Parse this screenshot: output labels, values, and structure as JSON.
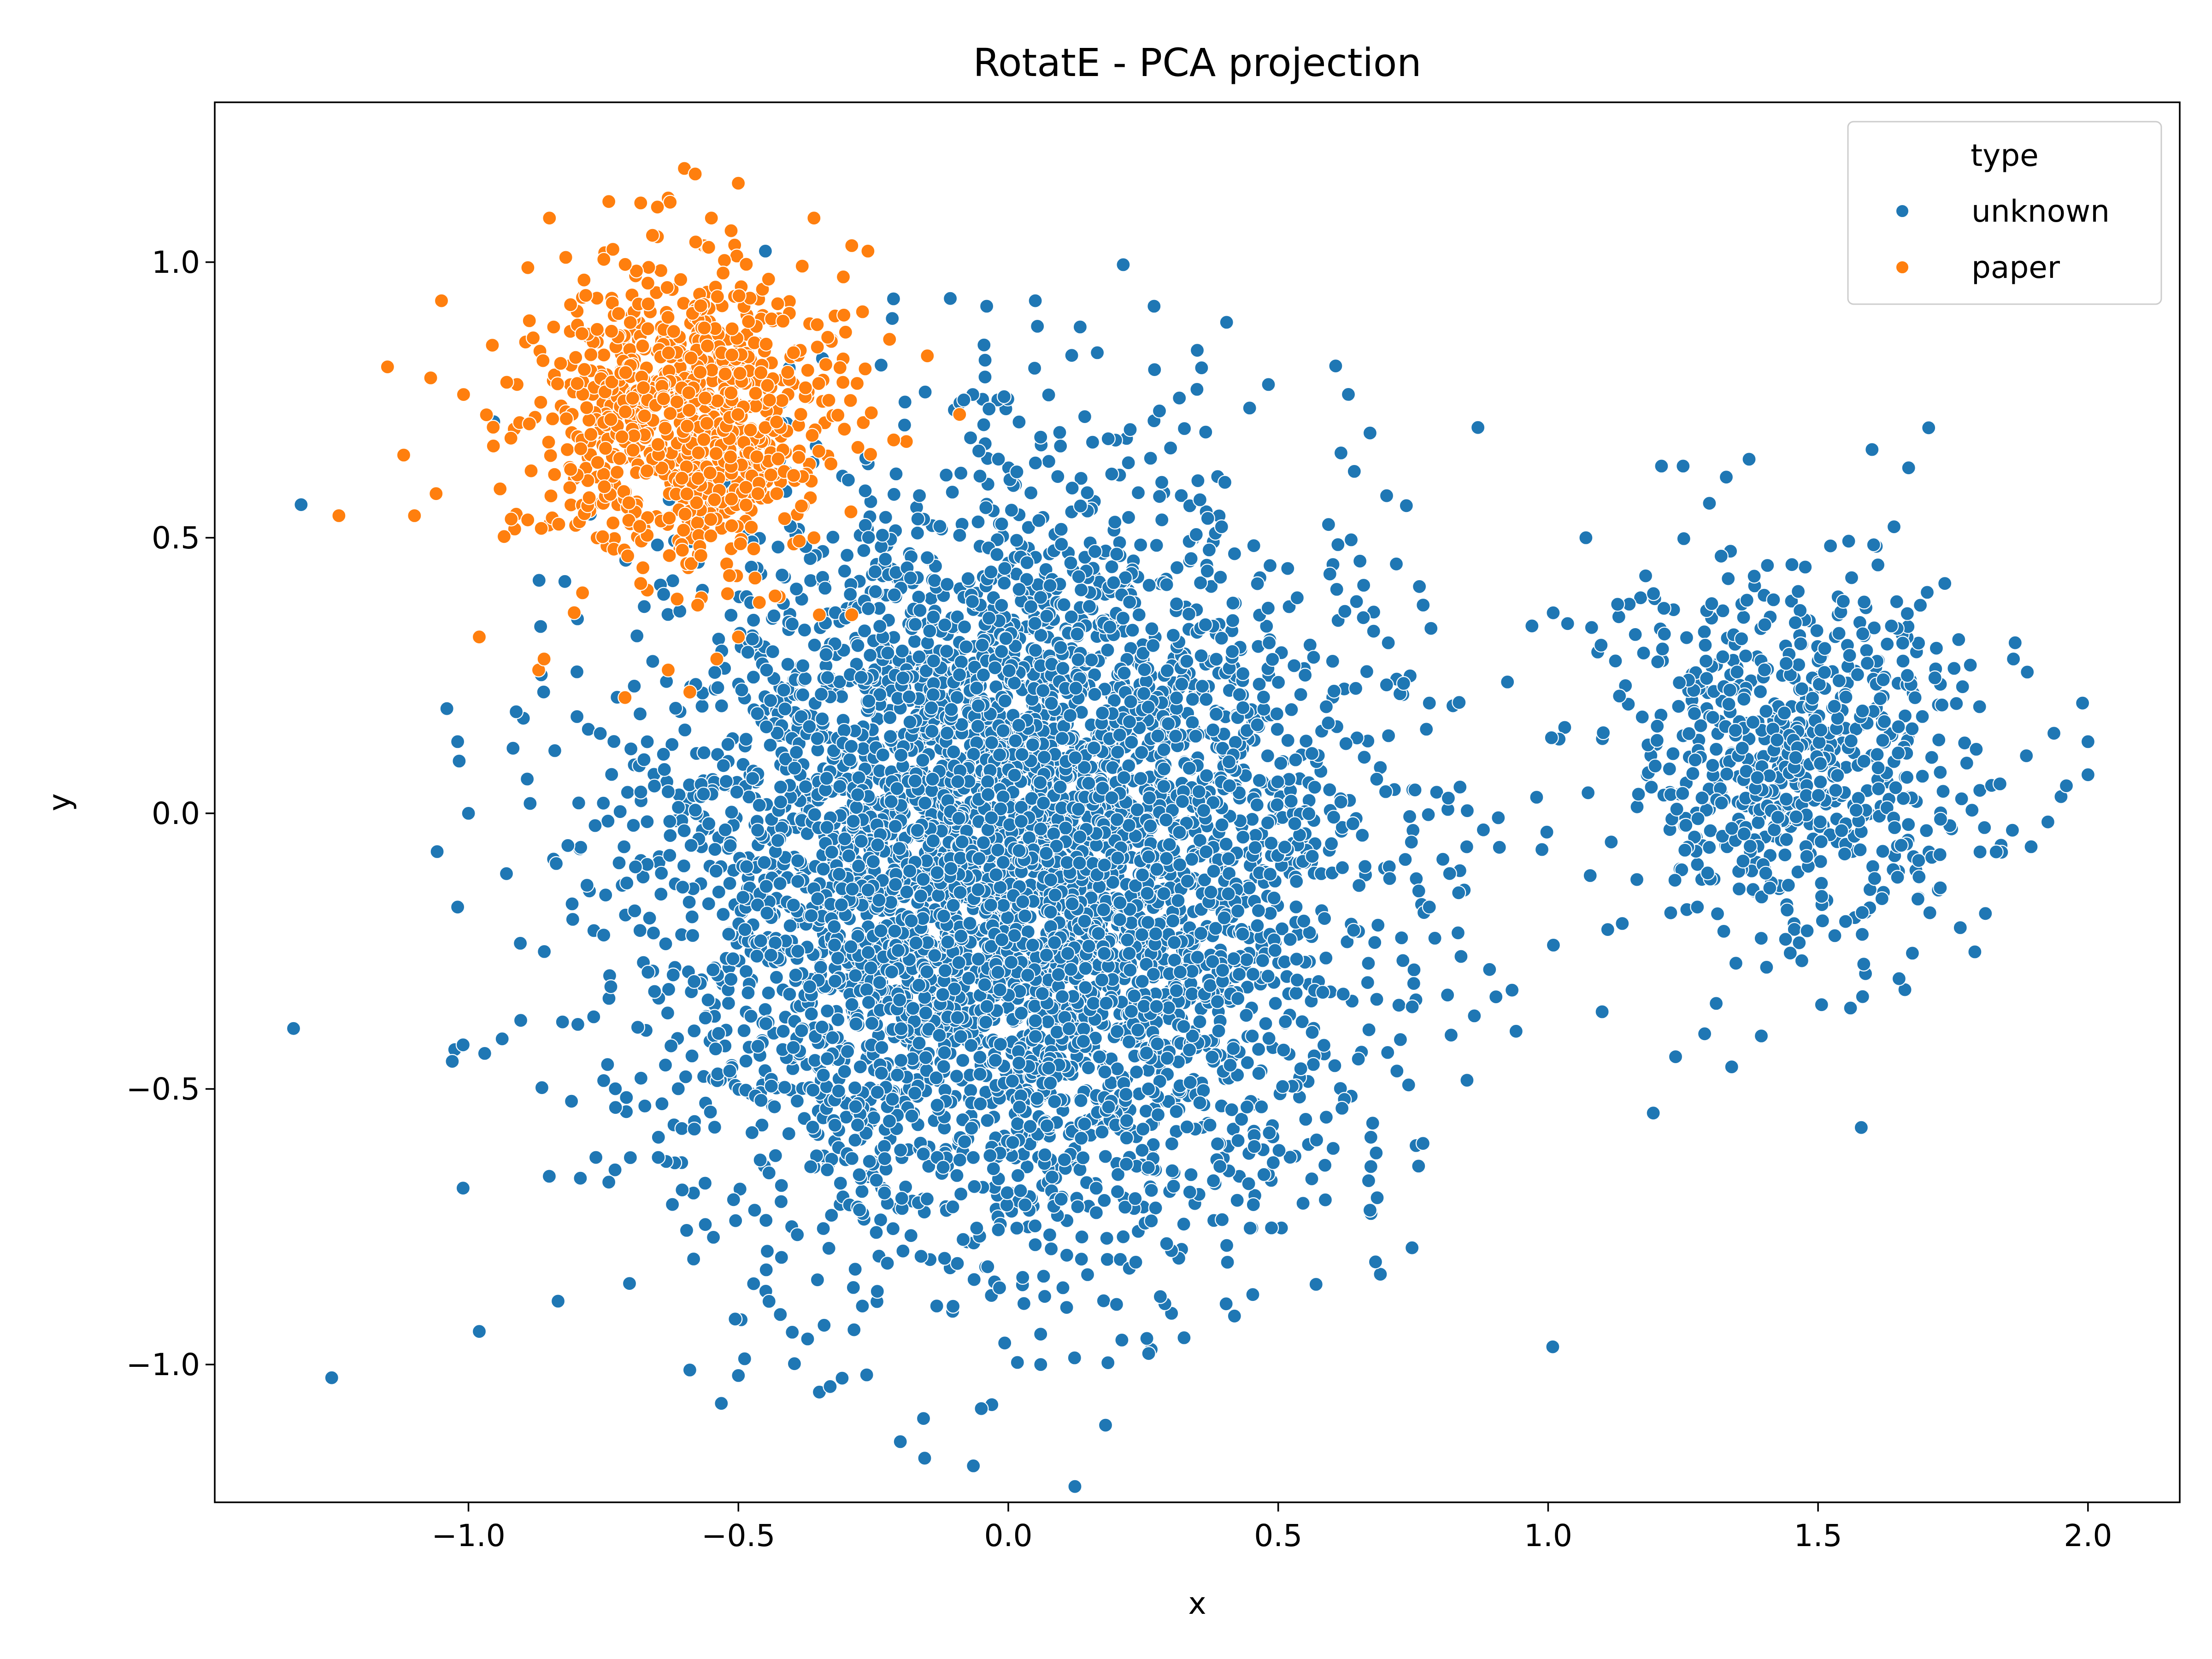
{
  "chart_data": {
    "type": "scatter",
    "title": "RotatE - PCA projection",
    "xlabel": "x",
    "ylabel": "y",
    "xlim": [
      -1.47,
      2.17
    ],
    "ylim": [
      -1.25,
      1.29
    ],
    "xticks": [
      -1.0,
      -0.5,
      0.0,
      0.5,
      1.0,
      1.5,
      2.0
    ],
    "xtick_labels": [
      "−1.0",
      "−0.5",
      "0.0",
      "0.5",
      "1.0",
      "1.5",
      "2.0"
    ],
    "yticks": [
      -1.0,
      -0.5,
      0.0,
      0.5,
      1.0
    ],
    "ytick_labels": [
      "−1.0",
      "−0.5",
      "0.0",
      "0.5",
      "1.0"
    ],
    "grid": false,
    "legend": {
      "title": "type",
      "placement": "upper right",
      "entries": [
        {
          "label": "unknown",
          "color": "#1f77b4"
        },
        {
          "label": "paper",
          "color": "#ff7f0e"
        }
      ]
    },
    "series": [
      {
        "name": "unknown",
        "color": "#1f77b4",
        "clusters": [
          {
            "center": [
              0.0,
              -0.1
            ],
            "spread": [
              0.32,
              0.33
            ],
            "count": 5200
          },
          {
            "center": [
              1.45,
              0.1
            ],
            "spread": [
              0.17,
              0.17
            ],
            "count": 700
          }
        ],
        "points": [
          [
            -1.31,
            0.56
          ],
          [
            0.05,
            0.93
          ],
          [
            -0.04,
            0.92
          ],
          [
            0.27,
            0.92
          ],
          [
            0.87,
            0.7
          ],
          [
            0.63,
            0.76
          ],
          [
            0.67,
            0.69
          ],
          [
            -1.04,
            0.19
          ],
          [
            -1.02,
            0.13
          ],
          [
            -1.0,
            0.0
          ],
          [
            0.97,
            0.34
          ],
          [
            1.07,
            0.5
          ],
          [
            0.88,
            -0.03
          ],
          [
            -1.02,
            -0.17
          ],
          [
            -1.01,
            -0.42
          ],
          [
            -1.03,
            -0.45
          ],
          [
            -1.01,
            -0.68
          ],
          [
            -0.98,
            -0.94
          ],
          [
            -0.5,
            -1.02
          ],
          [
            -0.59,
            -1.01
          ],
          [
            -0.35,
            -1.05
          ],
          [
            -0.33,
            -1.04
          ],
          [
            -0.2,
            -1.14
          ],
          [
            -0.05,
            -1.08
          ],
          [
            0.06,
            -1.0
          ],
          [
            0.26,
            -0.98
          ],
          [
            0.76,
            -0.64
          ],
          [
            0.67,
            -0.72
          ],
          [
            0.77,
            -0.18
          ],
          [
            0.78,
            -0.17
          ],
          [
            1.1,
            -0.36
          ],
          [
            1.29,
            -0.4
          ],
          [
            1.34,
            -0.46
          ],
          [
            1.58,
            -0.57
          ],
          [
            1.6,
            0.66
          ],
          [
            1.25,
            0.63
          ],
          [
            1.21,
            0.63
          ],
          [
            1.33,
            0.61
          ],
          [
            1.99,
            0.2
          ],
          [
            2.0,
            0.13
          ],
          [
            2.0,
            0.07
          ],
          [
            1.96,
            0.05
          ],
          [
            1.83,
            -0.07
          ],
          [
            1.8,
            -0.07
          ],
          [
            1.65,
            -0.3
          ],
          [
            -0.45,
            1.02
          ],
          [
            0.02,
            0.71
          ],
          [
            0.28,
            0.73
          ],
          [
            0.35,
            0.84
          ],
          [
            0.78,
            0.2
          ]
        ]
      },
      {
        "name": "paper",
        "color": "#ff7f0e",
        "clusters": [
          {
            "center": [
              -0.6,
              0.72
            ],
            "spread": [
              0.14,
              0.13
            ],
            "count": 900
          }
        ],
        "points": [
          [
            -1.24,
            0.54
          ],
          [
            -1.15,
            0.81
          ],
          [
            -1.12,
            0.65
          ],
          [
            -1.1,
            0.54
          ],
          [
            -1.07,
            0.79
          ],
          [
            -1.06,
            0.58
          ],
          [
            -1.05,
            0.93
          ],
          [
            -0.98,
            0.32
          ],
          [
            -0.87,
            0.26
          ],
          [
            -0.86,
            0.28
          ],
          [
            -0.6,
            1.17
          ],
          [
            -0.58,
            1.16
          ],
          [
            -0.74,
            1.11
          ],
          [
            -0.65,
            1.1
          ],
          [
            -0.85,
            1.08
          ],
          [
            -0.55,
            1.08
          ],
          [
            -0.36,
            1.08
          ],
          [
            -0.29,
            1.03
          ],
          [
            -0.26,
            1.02
          ],
          [
            -0.89,
            0.99
          ],
          [
            -0.27,
            0.91
          ],
          [
            -0.22,
            0.86
          ],
          [
            -0.15,
            0.83
          ],
          [
            -0.28,
            0.78
          ],
          [
            -0.71,
            0.21
          ],
          [
            -0.63,
            0.26
          ],
          [
            -0.59,
            0.22
          ],
          [
            -0.54,
            0.28
          ],
          [
            -0.5,
            0.32
          ],
          [
            -0.36,
            0.5
          ]
        ]
      }
    ]
  }
}
